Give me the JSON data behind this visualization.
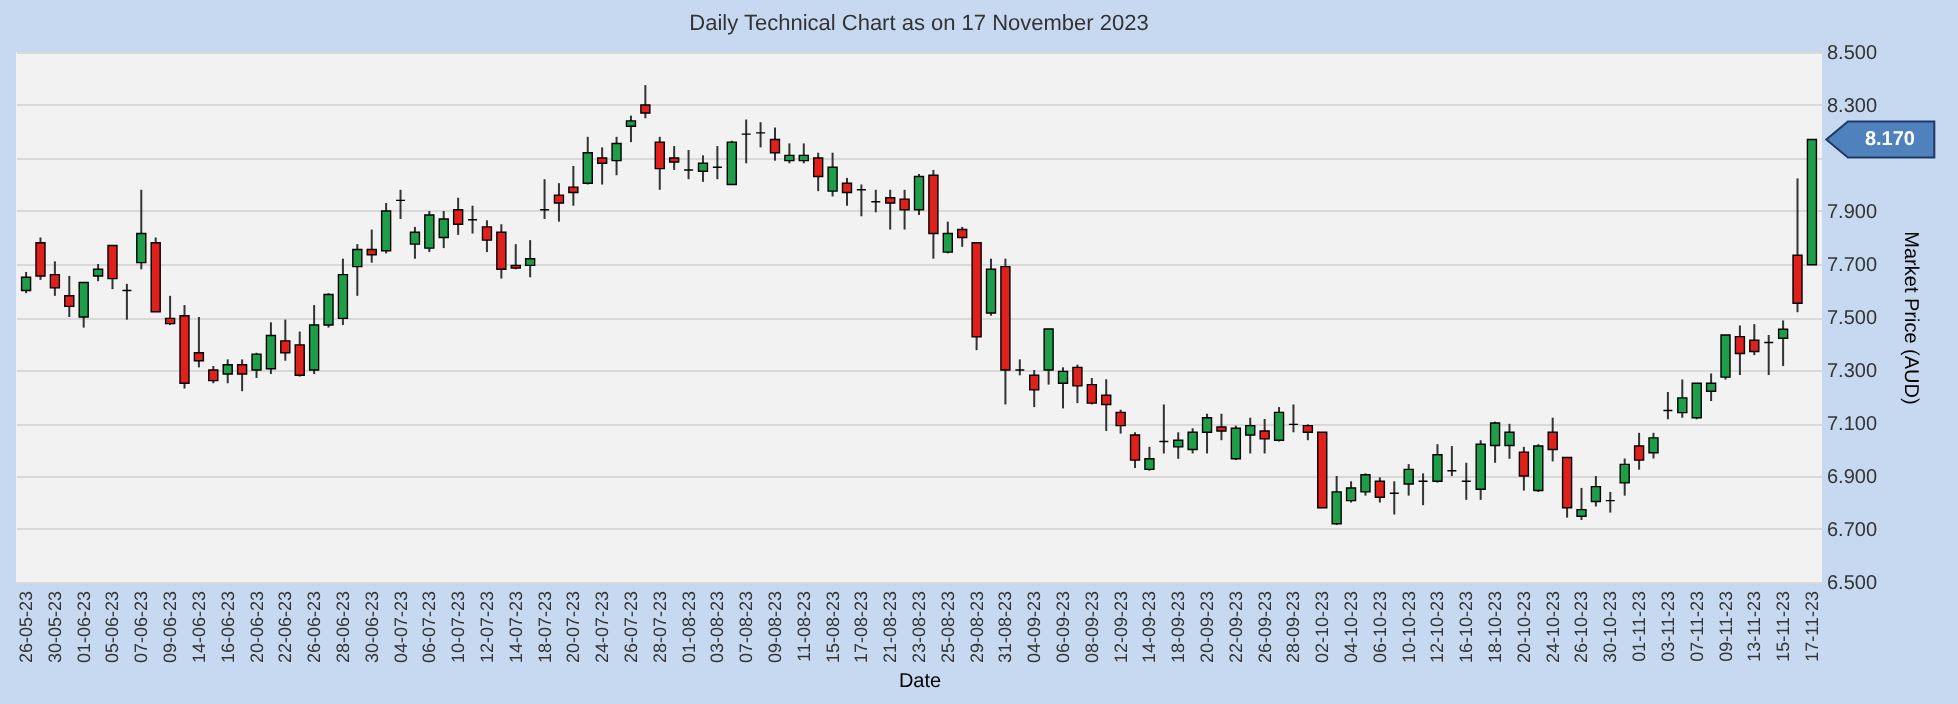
{
  "chart_data": {
    "type": "candlestick",
    "title": "Daily Technical Chart as on 17 November 2023",
    "xlabel": "Date",
    "ylabel": "Market Price (AUD)",
    "categories": [
      "26-05-23",
      null,
      "30-05-23",
      null,
      "01-06-23",
      null,
      "05-06-23",
      null,
      "07-06-23",
      null,
      "09-06-23",
      null,
      "14-06-23",
      null,
      "16-06-23",
      null,
      "20-06-23",
      null,
      "22-06-23",
      null,
      "26-06-23",
      null,
      "28-06-23",
      null,
      "30-06-23",
      null,
      "04-07-23",
      null,
      "06-07-23",
      null,
      "10-07-23",
      null,
      "12-07-23",
      null,
      "14-07-23",
      null,
      "18-07-23",
      null,
      "20-07-23",
      null,
      "24-07-23",
      null,
      "26-07-23",
      null,
      "28-07-23",
      null,
      "01-08-23",
      null,
      "03-08-23",
      null,
      "07-08-23",
      null,
      "09-08-23",
      null,
      "11-08-23",
      null,
      "15-08-23",
      null,
      "17-08-23",
      null,
      "21-08-23",
      null,
      "23-08-23",
      null,
      "25-08-23",
      null,
      "29-08-23",
      null,
      "31-08-23",
      null,
      "04-09-23",
      null,
      "06-09-23",
      null,
      "08-09-23",
      null,
      "12-09-23",
      null,
      "14-09-23",
      null,
      "18-09-23",
      null,
      "20-09-23",
      null,
      "22-09-23",
      null,
      "26-09-23",
      null,
      "28-09-23",
      null,
      "02-10-23",
      null,
      "04-10-23",
      null,
      "06-10-23",
      null,
      "10-10-23",
      null,
      "12-10-23",
      null,
      "16-10-23",
      null,
      "18-10-23",
      null,
      "20-10-23",
      null,
      "24-10-23",
      null,
      "26-10-23",
      null,
      "30-10-23",
      null,
      "01-11-23",
      null,
      "03-11-23",
      null,
      "07-11-23",
      null,
      "09-11-23",
      null,
      "13-11-23",
      null,
      "15-11-23",
      null,
      "17-11-23"
    ],
    "ohlc": [
      [
        7.6,
        7.67,
        7.59,
        7.65
      ],
      [
        7.78,
        7.8,
        7.64,
        7.655
      ],
      [
        7.66,
        7.71,
        7.58,
        7.61
      ],
      [
        7.58,
        7.655,
        7.5,
        7.54
      ],
      [
        7.5,
        7.63,
        7.46,
        7.63
      ],
      [
        7.655,
        7.7,
        7.635,
        7.68
      ],
      [
        7.77,
        7.77,
        7.605,
        7.645
      ],
      [
        7.6,
        7.625,
        7.49,
        7.6
      ],
      [
        7.705,
        7.98,
        7.68,
        7.815
      ],
      [
        7.78,
        7.8,
        7.52,
        7.52
      ],
      [
        7.495,
        7.58,
        7.47,
        7.475
      ],
      [
        7.505,
        7.545,
        7.23,
        7.25
      ],
      [
        7.365,
        7.5,
        7.31,
        7.335
      ],
      [
        7.3,
        7.315,
        7.25,
        7.26
      ],
      [
        7.285,
        7.34,
        7.25,
        7.32
      ],
      [
        7.32,
        7.34,
        7.22,
        7.285
      ],
      [
        7.3,
        7.365,
        7.27,
        7.36
      ],
      [
        7.305,
        7.48,
        7.285,
        7.43
      ],
      [
        7.41,
        7.49,
        7.335,
        7.365
      ],
      [
        7.395,
        7.445,
        7.275,
        7.28
      ],
      [
        7.3,
        7.545,
        7.285,
        7.47
      ],
      [
        7.47,
        7.59,
        7.46,
        7.585
      ],
      [
        7.495,
        7.72,
        7.47,
        7.66
      ],
      [
        7.69,
        7.775,
        7.58,
        7.755
      ],
      [
        7.755,
        7.83,
        7.705,
        7.735
      ],
      [
        7.75,
        7.93,
        7.74,
        7.9
      ],
      [
        7.94,
        7.98,
        7.87,
        7.94
      ],
      [
        7.775,
        7.84,
        7.72,
        7.82
      ],
      [
        7.76,
        7.9,
        7.745,
        7.885
      ],
      [
        7.8,
        7.9,
        7.76,
        7.87
      ],
      [
        7.905,
        7.95,
        7.81,
        7.85
      ],
      [
        7.867,
        7.92,
        7.815,
        7.867
      ],
      [
        7.84,
        7.865,
        7.745,
        7.79
      ],
      [
        7.82,
        7.85,
        7.645,
        7.68
      ],
      [
        7.695,
        7.775,
        7.68,
        7.685
      ],
      [
        7.695,
        7.79,
        7.65,
        7.72
      ],
      [
        7.905,
        8.02,
        7.87,
        7.905
      ],
      [
        7.96,
        8.005,
        7.86,
        7.93
      ],
      [
        7.99,
        8.07,
        7.92,
        7.97
      ],
      [
        8.005,
        8.18,
        8.0,
        8.12
      ],
      [
        8.1,
        8.14,
        8.0,
        8.08
      ],
      [
        8.09,
        8.18,
        8.035,
        8.155
      ],
      [
        8.22,
        8.26,
        8.16,
        8.24
      ],
      [
        8.3,
        8.375,
        8.25,
        8.27
      ],
      [
        8.16,
        8.18,
        7.98,
        8.06
      ],
      [
        8.1,
        8.145,
        8.055,
        8.085
      ],
      [
        8.055,
        8.13,
        8.02,
        8.055
      ],
      [
        8.05,
        8.11,
        8.01,
        8.08
      ],
      [
        8.065,
        8.145,
        8.02,
        8.065
      ],
      [
        8.0,
        8.165,
        8.0,
        8.16
      ],
      [
        8.19,
        8.245,
        8.08,
        8.19
      ],
      [
        8.195,
        8.235,
        8.14,
        8.195
      ],
      [
        8.17,
        8.215,
        8.09,
        8.12
      ],
      [
        8.09,
        8.155,
        8.08,
        8.11
      ],
      [
        8.09,
        8.155,
        8.08,
        8.11
      ],
      [
        8.1,
        8.12,
        7.975,
        8.03
      ],
      [
        7.975,
        8.12,
        7.955,
        8.065
      ],
      [
        8.005,
        8.025,
        7.92,
        7.97
      ],
      [
        7.98,
        8.0,
        7.88,
        7.98
      ],
      [
        7.935,
        7.98,
        7.895,
        7.935
      ],
      [
        7.95,
        7.98,
        7.83,
        7.93
      ],
      [
        7.945,
        7.98,
        7.83,
        7.905
      ],
      [
        7.905,
        8.04,
        7.885,
        8.03
      ],
      [
        8.035,
        8.055,
        7.72,
        7.815
      ],
      [
        7.745,
        7.86,
        7.74,
        7.815
      ],
      [
        7.83,
        7.84,
        7.765,
        7.8
      ],
      [
        7.78,
        7.78,
        7.375,
        7.425
      ],
      [
        7.515,
        7.72,
        7.505,
        7.68
      ],
      [
        7.69,
        7.72,
        7.17,
        7.3
      ],
      [
        7.3,
        7.34,
        7.28,
        7.3
      ],
      [
        7.28,
        7.3,
        7.16,
        7.225
      ],
      [
        7.3,
        7.455,
        7.245,
        7.455
      ],
      [
        7.25,
        7.31,
        7.155,
        7.295
      ],
      [
        7.31,
        7.32,
        7.175,
        7.24
      ],
      [
        7.245,
        7.27,
        7.17,
        7.175
      ],
      [
        7.205,
        7.265,
        7.07,
        7.17
      ],
      [
        7.14,
        7.15,
        7.06,
        7.09
      ],
      [
        7.055,
        7.065,
        6.93,
        6.96
      ],
      [
        6.925,
        7.01,
        6.92,
        6.965
      ],
      [
        7.03,
        7.17,
        6.985,
        7.03
      ],
      [
        7.01,
        7.065,
        6.965,
        7.035
      ],
      [
        7.0,
        7.08,
        6.985,
        7.065
      ],
      [
        7.065,
        7.135,
        6.985,
        7.12
      ],
      [
        7.085,
        7.135,
        7.035,
        7.07
      ],
      [
        6.965,
        7.09,
        6.96,
        7.08
      ],
      [
        7.055,
        7.12,
        6.985,
        7.09
      ],
      [
        7.07,
        7.115,
        6.985,
        7.04
      ],
      [
        7.035,
        7.16,
        7.03,
        7.14
      ],
      [
        7.095,
        7.17,
        7.065,
        7.095
      ],
      [
        7.09,
        7.095,
        7.035,
        7.065
      ],
      [
        7.065,
        7.065,
        6.78,
        6.78
      ],
      [
        6.72,
        6.9,
        6.715,
        6.84
      ],
      [
        6.807,
        6.88,
        6.8,
        6.855
      ],
      [
        6.84,
        6.91,
        6.826,
        6.905
      ],
      [
        6.88,
        6.895,
        6.8,
        6.82
      ],
      [
        6.835,
        6.88,
        6.755,
        6.835
      ],
      [
        6.87,
        6.945,
        6.826,
        6.925
      ],
      [
        6.88,
        6.91,
        6.79,
        6.88
      ],
      [
        6.88,
        7.02,
        6.875,
        6.98
      ],
      [
        6.92,
        7.013,
        6.9,
        6.92
      ],
      [
        6.88,
        6.95,
        6.81,
        6.88
      ],
      [
        6.85,
        7.035,
        6.81,
        7.02
      ],
      [
        7.015,
        7.105,
        6.95,
        7.1
      ],
      [
        7.015,
        7.097,
        6.965,
        7.065
      ],
      [
        6.99,
        7.01,
        6.845,
        6.9
      ],
      [
        6.845,
        7.02,
        6.84,
        7.013
      ],
      [
        7.065,
        7.12,
        6.955,
        7.0
      ],
      [
        6.97,
        6.97,
        6.743,
        6.78
      ],
      [
        6.748,
        6.855,
        6.734,
        6.773
      ],
      [
        6.804,
        6.9,
        6.785,
        6.86
      ],
      [
        6.807,
        6.84,
        6.762,
        6.807
      ],
      [
        6.874,
        6.966,
        6.826,
        6.944
      ],
      [
        7.013,
        7.063,
        6.924,
        6.96
      ],
      [
        6.988,
        7.063,
        6.966,
        7.044
      ],
      [
        7.147,
        7.217,
        7.114,
        7.147
      ],
      [
        7.139,
        7.264,
        7.12,
        7.195
      ],
      [
        7.12,
        7.25,
        7.114,
        7.25
      ],
      [
        7.22,
        7.287,
        7.183,
        7.25
      ],
      [
        7.273,
        7.432,
        7.264,
        7.432
      ],
      [
        7.426,
        7.468,
        7.281,
        7.362
      ],
      [
        7.412,
        7.473,
        7.356,
        7.37
      ],
      [
        7.404,
        7.432,
        7.281,
        7.404
      ],
      [
        7.42,
        7.487,
        7.315,
        7.454
      ],
      [
        7.733,
        8.023,
        7.518,
        7.552
      ],
      [
        7.697,
        8.17,
        7.697,
        8.17
      ]
    ],
    "colors": [
      "#1f9e4a",
      "#e0201b",
      "#e0201b",
      "#e0201b",
      "#1f9e4a",
      "#1f9e4a",
      "#e0201b",
      "#000000",
      "#1f9e4a",
      "#e0201b",
      "#e0201b",
      "#e0201b",
      "#e0201b",
      "#e0201b",
      "#1f9e4a",
      "#e0201b",
      "#1f9e4a",
      "#1f9e4a",
      "#e0201b",
      "#e0201b",
      "#1f9e4a",
      "#1f9e4a",
      "#1f9e4a",
      "#1f9e4a",
      "#e0201b",
      "#1f9e4a",
      "#000000",
      "#1f9e4a",
      "#1f9e4a",
      "#1f9e4a",
      "#e0201b",
      "#000000",
      "#e0201b",
      "#e0201b",
      "#e0201b",
      "#1f9e4a",
      "#000000",
      "#e0201b",
      "#e0201b",
      "#1f9e4a",
      "#e0201b",
      "#1f9e4a",
      "#1f9e4a",
      "#e0201b",
      "#e0201b",
      "#e0201b",
      "#000000",
      "#1f9e4a",
      "#000000",
      "#1f9e4a",
      "#000000",
      "#000000",
      "#e0201b",
      "#1f9e4a",
      "#1f9e4a",
      "#e0201b",
      "#1f9e4a",
      "#e0201b",
      "#000000",
      "#000000",
      "#e0201b",
      "#e0201b",
      "#1f9e4a",
      "#e0201b",
      "#1f9e4a",
      "#e0201b",
      "#e0201b",
      "#1f9e4a",
      "#e0201b",
      "#000000",
      "#e0201b",
      "#1f9e4a",
      "#1f9e4a",
      "#e0201b",
      "#e0201b",
      "#e0201b",
      "#e0201b",
      "#e0201b",
      "#1f9e4a",
      "#000000",
      "#1f9e4a",
      "#1f9e4a",
      "#1f9e4a",
      "#e0201b",
      "#1f9e4a",
      "#1f9e4a",
      "#e0201b",
      "#1f9e4a",
      "#000000",
      "#e0201b",
      "#e0201b",
      "#1f9e4a",
      "#1f9e4a",
      "#1f9e4a",
      "#e0201b",
      "#000000",
      "#1f9e4a",
      "#000000",
      "#1f9e4a",
      "#000000",
      "#000000",
      "#1f9e4a",
      "#1f9e4a",
      "#1f9e4a",
      "#e0201b",
      "#1f9e4a",
      "#e0201b",
      "#e0201b",
      "#1f9e4a",
      "#1f9e4a",
      "#000000",
      "#1f9e4a",
      "#e0201b",
      "#1f9e4a",
      "#000000",
      "#1f9e4a",
      "#1f9e4a",
      "#1f9e4a",
      "#1f9e4a",
      "#e0201b",
      "#e0201b",
      "#000000",
      "#1f9e4a",
      "#e0201b",
      "#1f9e4a"
    ],
    "ylim": [
      6.5,
      8.5
    ],
    "yticks": [
      {
        "value": 6.5,
        "label": "6.500"
      },
      {
        "value": 6.7,
        "label": "6.700"
      },
      {
        "value": 6.9,
        "label": "6.900"
      },
      {
        "value": 7.1,
        "label": "7.100"
      },
      {
        "value": 7.3,
        "label": "7.300"
      },
      {
        "value": 7.5,
        "label": "7.500"
      },
      {
        "value": 7.7,
        "label": "7.700"
      },
      {
        "value": 7.9,
        "label": "7.900"
      },
      {
        "value": 8.1,
        "label": null
      },
      {
        "value": 8.3,
        "label": "8.300"
      },
      {
        "value": 8.5,
        "label": "8.500"
      }
    ],
    "grid": "y",
    "annotations": [
      {
        "text": "8.170",
        "x": "17-11-23",
        "y": 8.17
      }
    ]
  }
}
